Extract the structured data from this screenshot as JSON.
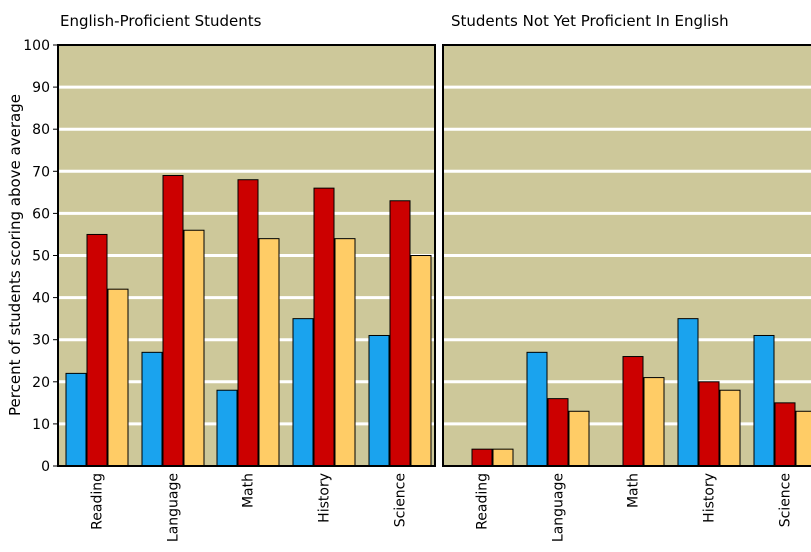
{
  "colors": {
    "plot_background": "#cdc89a",
    "gridline": "#ffffff",
    "series_blue": "#1aa3ee",
    "series_red": "#cc0000",
    "series_gold": "#ffcc66",
    "frame": "#000000"
  },
  "chart_data": [
    {
      "type": "bar",
      "title": "English-Proficient Students",
      "ylabel": "Percent of students scoring above average",
      "xlabel": "",
      "ylim": [
        0,
        100
      ],
      "yticks": [
        0,
        10,
        20,
        30,
        40,
        50,
        60,
        70,
        80,
        90,
        100
      ],
      "grid": true,
      "legend": "none",
      "categories": [
        "Reading",
        "Language",
        "Math",
        "History",
        "Science"
      ],
      "series": [
        {
          "color": "#1aa3ee",
          "values": [
            22,
            27,
            18,
            35,
            31
          ]
        },
        {
          "color": "#cc0000",
          "values": [
            55,
            69,
            68,
            66,
            63
          ]
        },
        {
          "color": "#ffcc66",
          "values": [
            42,
            56,
            54,
            54,
            50
          ]
        }
      ]
    },
    {
      "type": "bar",
      "title": "Students Not Yet Proficient In English",
      "ylabel": "",
      "xlabel": "",
      "ylim": [
        0,
        100
      ],
      "grid": true,
      "legend": "none",
      "categories": [
        "Reading",
        "Language",
        "Math",
        "History",
        "Science"
      ],
      "series": [
        {
          "color": "#1aa3ee",
          "values": [
            0,
            27,
            0,
            35,
            31
          ]
        },
        {
          "color": "#cc0000",
          "values": [
            4,
            16,
            26,
            20,
            15
          ]
        },
        {
          "color": "#ffcc66",
          "values": [
            4,
            13,
            21,
            18,
            13
          ]
        }
      ]
    }
  ]
}
